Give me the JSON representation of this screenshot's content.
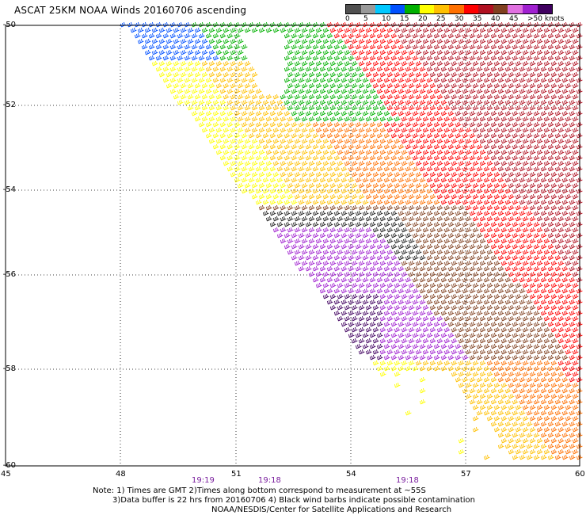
{
  "title": "ASCAT 25KM NOAA Winds 20160706 ascending",
  "legend": {
    "labels": [
      "0",
      "5",
      "10",
      "15",
      "20",
      "25",
      "30",
      "35",
      "40",
      "45",
      ">50 knots"
    ],
    "colors": [
      "#505050",
      "#999999",
      "#00c8ff",
      "#0050ff",
      "#00b000",
      "#ffff00",
      "#ffc000",
      "#ff7000",
      "#ff0000",
      "#b01020",
      "#804020",
      "#e070e0",
      "#a020d0",
      "#400060"
    ]
  },
  "axes": {
    "lat_labels": [
      "-50",
      "-52",
      "-54",
      "-56",
      "-58",
      "-60"
    ],
    "lon_labels": [
      "45",
      "48",
      "51",
      "54",
      "57",
      "60"
    ]
  },
  "time_labels": [
    "19:19",
    "19:18",
    "19:18"
  ],
  "notes": [
    "Note: 1) Times are GMT 2)Times along bottom correspond to measurement at ~55S",
    "3)Data buffer is 22 hrs from 20160706 4) Black wind barbs indicate possible contamination",
    "NOAA/NESDIS/Center for Satellite Applications and Research"
  ]
}
